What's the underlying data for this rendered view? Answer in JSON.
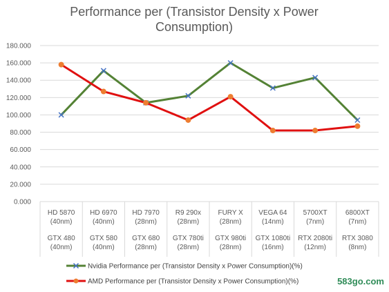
{
  "chart_data": {
    "type": "line",
    "title_lines": [
      "Performance per (Transistor Density x Power",
      "Consumption)"
    ],
    "amd_categories": [
      [
        "HD 5870",
        "(40nm)"
      ],
      [
        "HD 6970",
        "(40nm)"
      ],
      [
        "HD 7970",
        "(28nm)"
      ],
      [
        "R9 290x",
        "(28nm)"
      ],
      [
        "FURY X",
        "(28nm)"
      ],
      [
        "VEGA 64",
        "(14nm)"
      ],
      [
        "5700XT",
        "(7nm)"
      ],
      [
        "6800XT",
        "(7nm)"
      ]
    ],
    "nvidia_categories": [
      [
        "GTX 480",
        "(40nm)"
      ],
      [
        "GTX 580",
        "(40nm)"
      ],
      [
        "GTX 680",
        "(28nm)"
      ],
      [
        "GTX 780ti",
        "(28nm)"
      ],
      [
        "GTX 980ti",
        "(28nm)"
      ],
      [
        "GTX 1080ti",
        "(16nm)"
      ],
      [
        "RTX 2080ti",
        "(12nm)"
      ],
      [
        "RTX 3080",
        "(8nm)"
      ]
    ],
    "y_ticks": [
      "0.000",
      "20.000",
      "40.000",
      "60.000",
      "80.000",
      "100.000",
      "120.000",
      "140.000",
      "160.000",
      "180.000"
    ],
    "ylim": [
      0,
      180
    ],
    "grid": true,
    "legend_position": "bottom",
    "series": [
      {
        "name": "Nvidia Performance per (Transistor Density x Power Consumption)(%)",
        "color": "#548235",
        "marker": "x",
        "marker_color": "#4472c4",
        "values": [
          100,
          151,
          114,
          122,
          160,
          131,
          143,
          94
        ]
      },
      {
        "name": "AMD Performance per (Transistor Density x Power Consumption)(%)",
        "color": "#e01010",
        "marker": "circle",
        "marker_color": "#ed7d31",
        "values": [
          158,
          127,
          114,
          94,
          121,
          82,
          82,
          87
        ]
      }
    ]
  },
  "watermark": "583go.com"
}
